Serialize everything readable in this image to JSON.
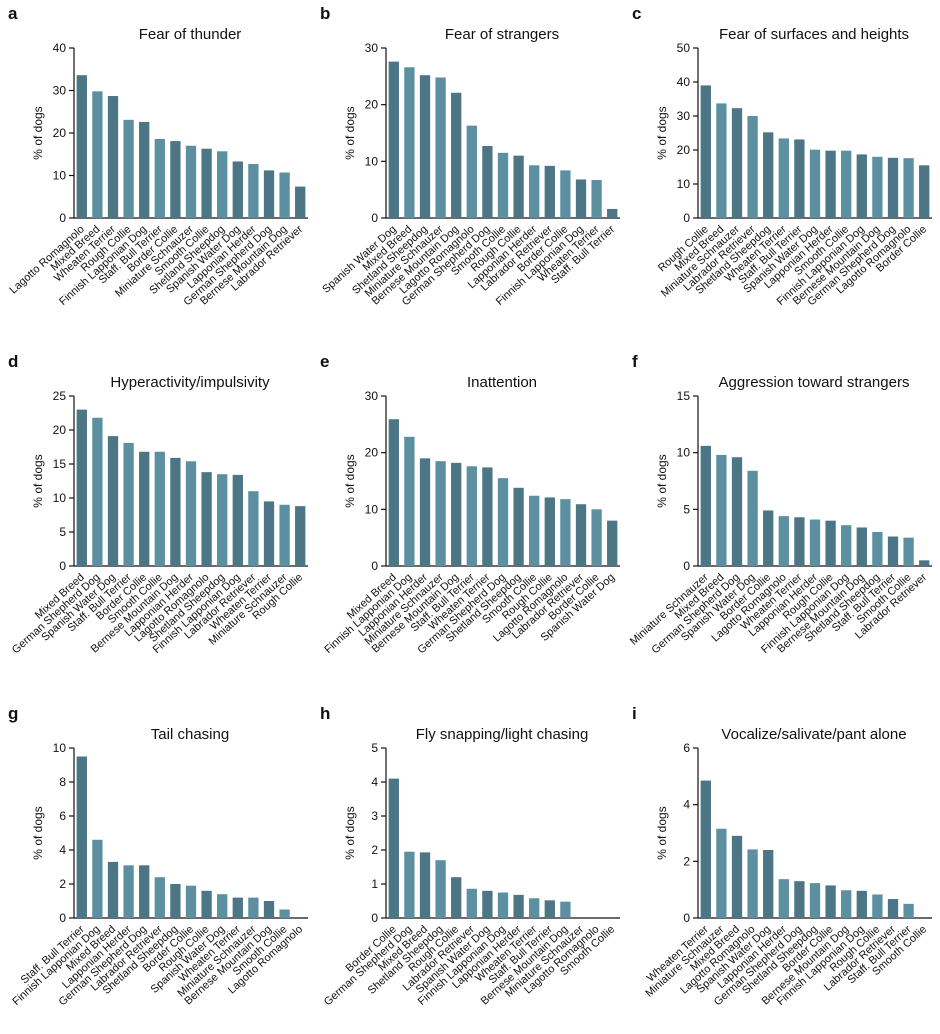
{
  "figure": {
    "bar_color_dark": "#4c7585",
    "bar_color_light": "#5c8fa0",
    "axis_color": "#111111"
  },
  "chart_data": [
    {
      "letter": "a",
      "type": "bar",
      "title": "Fear of thunder",
      "ylabel": "% of dogs",
      "ylim": [
        0,
        40
      ],
      "yticks": [
        0,
        10,
        20,
        30,
        40
      ],
      "grid": false,
      "categories": [
        "Lagotto Romagnolo",
        "Mixed Breed",
        "Wheaten Terrier",
        "Rough Collie",
        "Finnish Lapponian Dog",
        "Staff. Bull Terrier",
        "Border Collie",
        "Miniature Schnauzer",
        "Smooth Collie",
        "Shetland Sheepdog",
        "Spanish Water Dog",
        "Lapponian Herder",
        "German Shepherd Dog",
        "Bernese Mountain Dog",
        "Labrador Retriever"
      ],
      "values": [
        33.6,
        29.8,
        28.7,
        23.1,
        22.6,
        18.6,
        18.1,
        17.0,
        16.3,
        15.7,
        13.3,
        12.7,
        11.2,
        10.7,
        7.4
      ]
    },
    {
      "letter": "b",
      "type": "bar",
      "title": "Fear of strangers",
      "ylabel": "% of dogs",
      "ylim": [
        0,
        30
      ],
      "yticks": [
        0,
        10,
        20,
        30
      ],
      "grid": false,
      "categories": [
        "Spanish Water Dog",
        "Mixed Breed",
        "Shetland Sheepdog",
        "Miniature Schnauzer",
        "Bernese Mountain Dog",
        "Lagotto Romagnolo",
        "German Shepherd Dog",
        "Smooth Collie",
        "Rough Collie",
        "Lapponian Herder",
        "Labrador Retriever",
        "Border Collie",
        "Finnish Lapponian Dog",
        "Wheaten Terrier",
        "Staff. Bull Terrier"
      ],
      "values": [
        27.6,
        26.6,
        25.2,
        24.8,
        22.1,
        16.3,
        12.7,
        11.5,
        11.0,
        9.3,
        9.2,
        8.4,
        6.8,
        6.7,
        1.6
      ]
    },
    {
      "letter": "c",
      "type": "bar",
      "title": "Fear of surfaces and heights",
      "ylabel": "% of dogs",
      "ylim": [
        0,
        50
      ],
      "yticks": [
        0,
        10,
        20,
        30,
        40,
        50
      ],
      "grid": false,
      "categories": [
        "Rough Collie",
        "Mixed Breed",
        "Miniature Schnauzer",
        "Labrador Retriever",
        "Shetland Sheepdog",
        "Wheaten Terrier",
        "Staff. Bull Terrier",
        "Spanish Water Dog",
        "Lapponian Herder",
        "Smooth Collie",
        "Finnish Lapponian Dog",
        "Bernese Mountain Dog",
        "German Shepherd Dog",
        "Lagotto Romagnolo",
        "Border Collie"
      ],
      "values": [
        39.0,
        33.7,
        32.3,
        30.0,
        25.2,
        23.4,
        23.1,
        20.1,
        19.8,
        19.8,
        18.7,
        18.0,
        17.7,
        17.6,
        15.5
      ]
    },
    {
      "letter": "d",
      "type": "bar",
      "title": "Hyperactivity/impulsivity",
      "ylabel": "% of dogs",
      "ylim": [
        0,
        25
      ],
      "yticks": [
        0,
        5,
        10,
        15,
        20,
        25
      ],
      "grid": false,
      "categories": [
        "Mixed Breed",
        "German Shepherd Dog",
        "Spanish Water Dog",
        "Staff. Bull Terrier",
        "Border Collie",
        "Smooth Collie",
        "Bernese Mountain Dog",
        "Lapponian Herder",
        "Lagotto Romagnolo",
        "Shetland Sheepdog",
        "Finnish Lapponian Dog",
        "Labrador Retriever",
        "Wheaten Terrier",
        "Miniature Schnauzer",
        "Rough Collie"
      ],
      "values": [
        23.0,
        21.8,
        19.1,
        18.1,
        16.8,
        16.8,
        15.9,
        15.4,
        13.8,
        13.5,
        13.4,
        11.0,
        9.5,
        9.0,
        8.8
      ]
    },
    {
      "letter": "e",
      "type": "bar",
      "title": "Inattention",
      "ylabel": "% of dogs",
      "ylim": [
        0,
        30
      ],
      "yticks": [
        0,
        10,
        20,
        30
      ],
      "grid": false,
      "categories": [
        "Mixed Breed",
        "Finnish Lapponian Dog",
        "Lapponian Herder",
        "Miniature Schnauzer",
        "Bernese Mountain Dog",
        "Staff. Bull Terrier",
        "Wheaten Terrier",
        "German Shepherd Dog",
        "Shetland Sheepdog",
        "Smooth Collie",
        "Rough Collie",
        "Lagotto Romagnolo",
        "Labrador Retriever",
        "Border Collie",
        "Spanish Water Dog"
      ],
      "values": [
        25.9,
        22.8,
        19.0,
        18.5,
        18.2,
        17.6,
        17.4,
        15.5,
        13.8,
        12.4,
        12.1,
        11.8,
        10.9,
        10.0,
        8.0
      ]
    },
    {
      "letter": "f",
      "type": "bar",
      "title": "Aggression toward strangers",
      "ylabel": "% of dogs",
      "ylim": [
        0,
        15
      ],
      "yticks": [
        0,
        5,
        10,
        15
      ],
      "grid": false,
      "categories": [
        "Miniature Schnauzer",
        "Mixed Breed",
        "German Shepherd Dog",
        "Spanish Water Dog",
        "Border Collie",
        "Lagotto Romagnolo",
        "Wheaten Terrier",
        "Lapponian Herder",
        "Rough Collie",
        "Finnish Lapponian Dog",
        "Bernese Mountain Dog",
        "Shetland Sheepdog",
        "Staff. Bull Terrier",
        "Smooth Collie",
        "Labrador Retriever"
      ],
      "values": [
        10.6,
        9.8,
        9.6,
        8.4,
        4.9,
        4.4,
        4.3,
        4.1,
        4.0,
        3.6,
        3.4,
        3.0,
        2.6,
        2.5,
        0.5
      ]
    },
    {
      "letter": "g",
      "type": "bar",
      "title": "Tail chasing",
      "ylabel": "% of dogs",
      "ylim": [
        0,
        10
      ],
      "yticks": [
        0,
        2,
        4,
        6,
        8,
        10
      ],
      "grid": false,
      "categories": [
        "Staff. Bull Terrier",
        "Finnish Lapponian Dog",
        "Mixed Breed",
        "Lapponian Herder",
        "German Shepherd Dog",
        "Labrador Retriever",
        "Shetland Sheepdog",
        "Border Collie",
        "Rough Collie",
        "Spanish Water Dog",
        "Wheaten Terrier",
        "Miniature Schnauzer",
        "Bernese Mountain Dog",
        "Smooth Collie",
        "Lagotto Romagnolo"
      ],
      "values": [
        9.5,
        4.6,
        3.3,
        3.1,
        3.1,
        2.4,
        2.0,
        1.9,
        1.6,
        1.4,
        1.2,
        1.2,
        1.0,
        0.5,
        0.0
      ]
    },
    {
      "letter": "h",
      "type": "bar",
      "title": "Fly snapping/light chasing",
      "ylabel": "% of dogs",
      "ylim": [
        0,
        5
      ],
      "yticks": [
        0,
        1,
        2,
        3,
        4,
        5
      ],
      "grid": false,
      "categories": [
        "Border Collie",
        "German Shepherd Dog",
        "Mixed Breed",
        "Shetland Sheepdog",
        "Rough Collie",
        "Labrador Retriever",
        "Spanish Water Dog",
        "Finnish Lapponian Dog",
        "Lapponian Herder",
        "Wheaten Terrier",
        "Staff. Bull Terrier",
        "Bernese Mountain Dog",
        "Miniature Schnauzer",
        "Lagotto Romagnolo",
        "Smooth Collie"
      ],
      "values": [
        4.1,
        1.95,
        1.93,
        1.7,
        1.2,
        0.86,
        0.8,
        0.75,
        0.68,
        0.58,
        0.52,
        0.48,
        0.0,
        0.0,
        0.0
      ]
    },
    {
      "letter": "i",
      "type": "bar",
      "title": "Vocalize/salivate/pant alone",
      "ylabel": "% of dogs",
      "ylim": [
        0,
        6
      ],
      "yticks": [
        0,
        2,
        4,
        6
      ],
      "grid": false,
      "categories": [
        "Wheaten Terrier",
        "Miniature Schnauzer",
        "Mixed Breed",
        "Lagotto Romagnolo",
        "Spanish Water Dog",
        "Lapponian Herder",
        "German Shepherd Dog",
        "Shetland Sheepdog",
        "Border Collie",
        "Bernese Mountain Dog",
        "Finnish Lapponian Dog",
        "Rough Collie",
        "Labrador Retriever",
        "Staff. Bull Terrier",
        "Smooth Collie"
      ],
      "values": [
        4.85,
        3.15,
        2.9,
        2.42,
        2.4,
        1.37,
        1.3,
        1.23,
        1.15,
        0.98,
        0.96,
        0.83,
        0.67,
        0.5,
        0.0
      ]
    }
  ]
}
